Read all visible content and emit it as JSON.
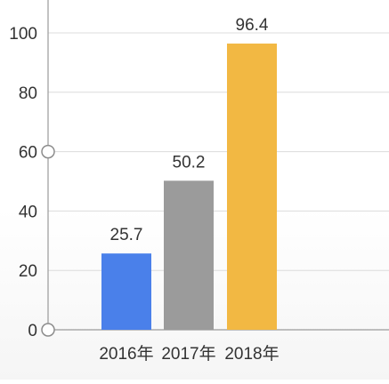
{
  "colors": {
    "grid": "#dcdcdc",
    "axis": "#9a9a9a",
    "tick_text": "#333333",
    "label_text": "#333333",
    "handle_stroke": "#8c8c8c"
  },
  "chart_data": {
    "type": "bar",
    "categories": [
      "2016年",
      "2017年",
      "2018年"
    ],
    "values": [
      25.7,
      50.2,
      96.4
    ],
    "bar_colors": [
      "#4a80ea",
      "#9b9b9b",
      "#f2b843"
    ],
    "ylim": [
      0,
      100
    ],
    "yticks": [
      "0",
      "20",
      "40",
      "60",
      "80",
      "100"
    ],
    "data_labels": [
      "25.7",
      "50.2",
      "96.4"
    ],
    "grid": true,
    "title": "",
    "xlabel": "",
    "ylabel": ""
  }
}
